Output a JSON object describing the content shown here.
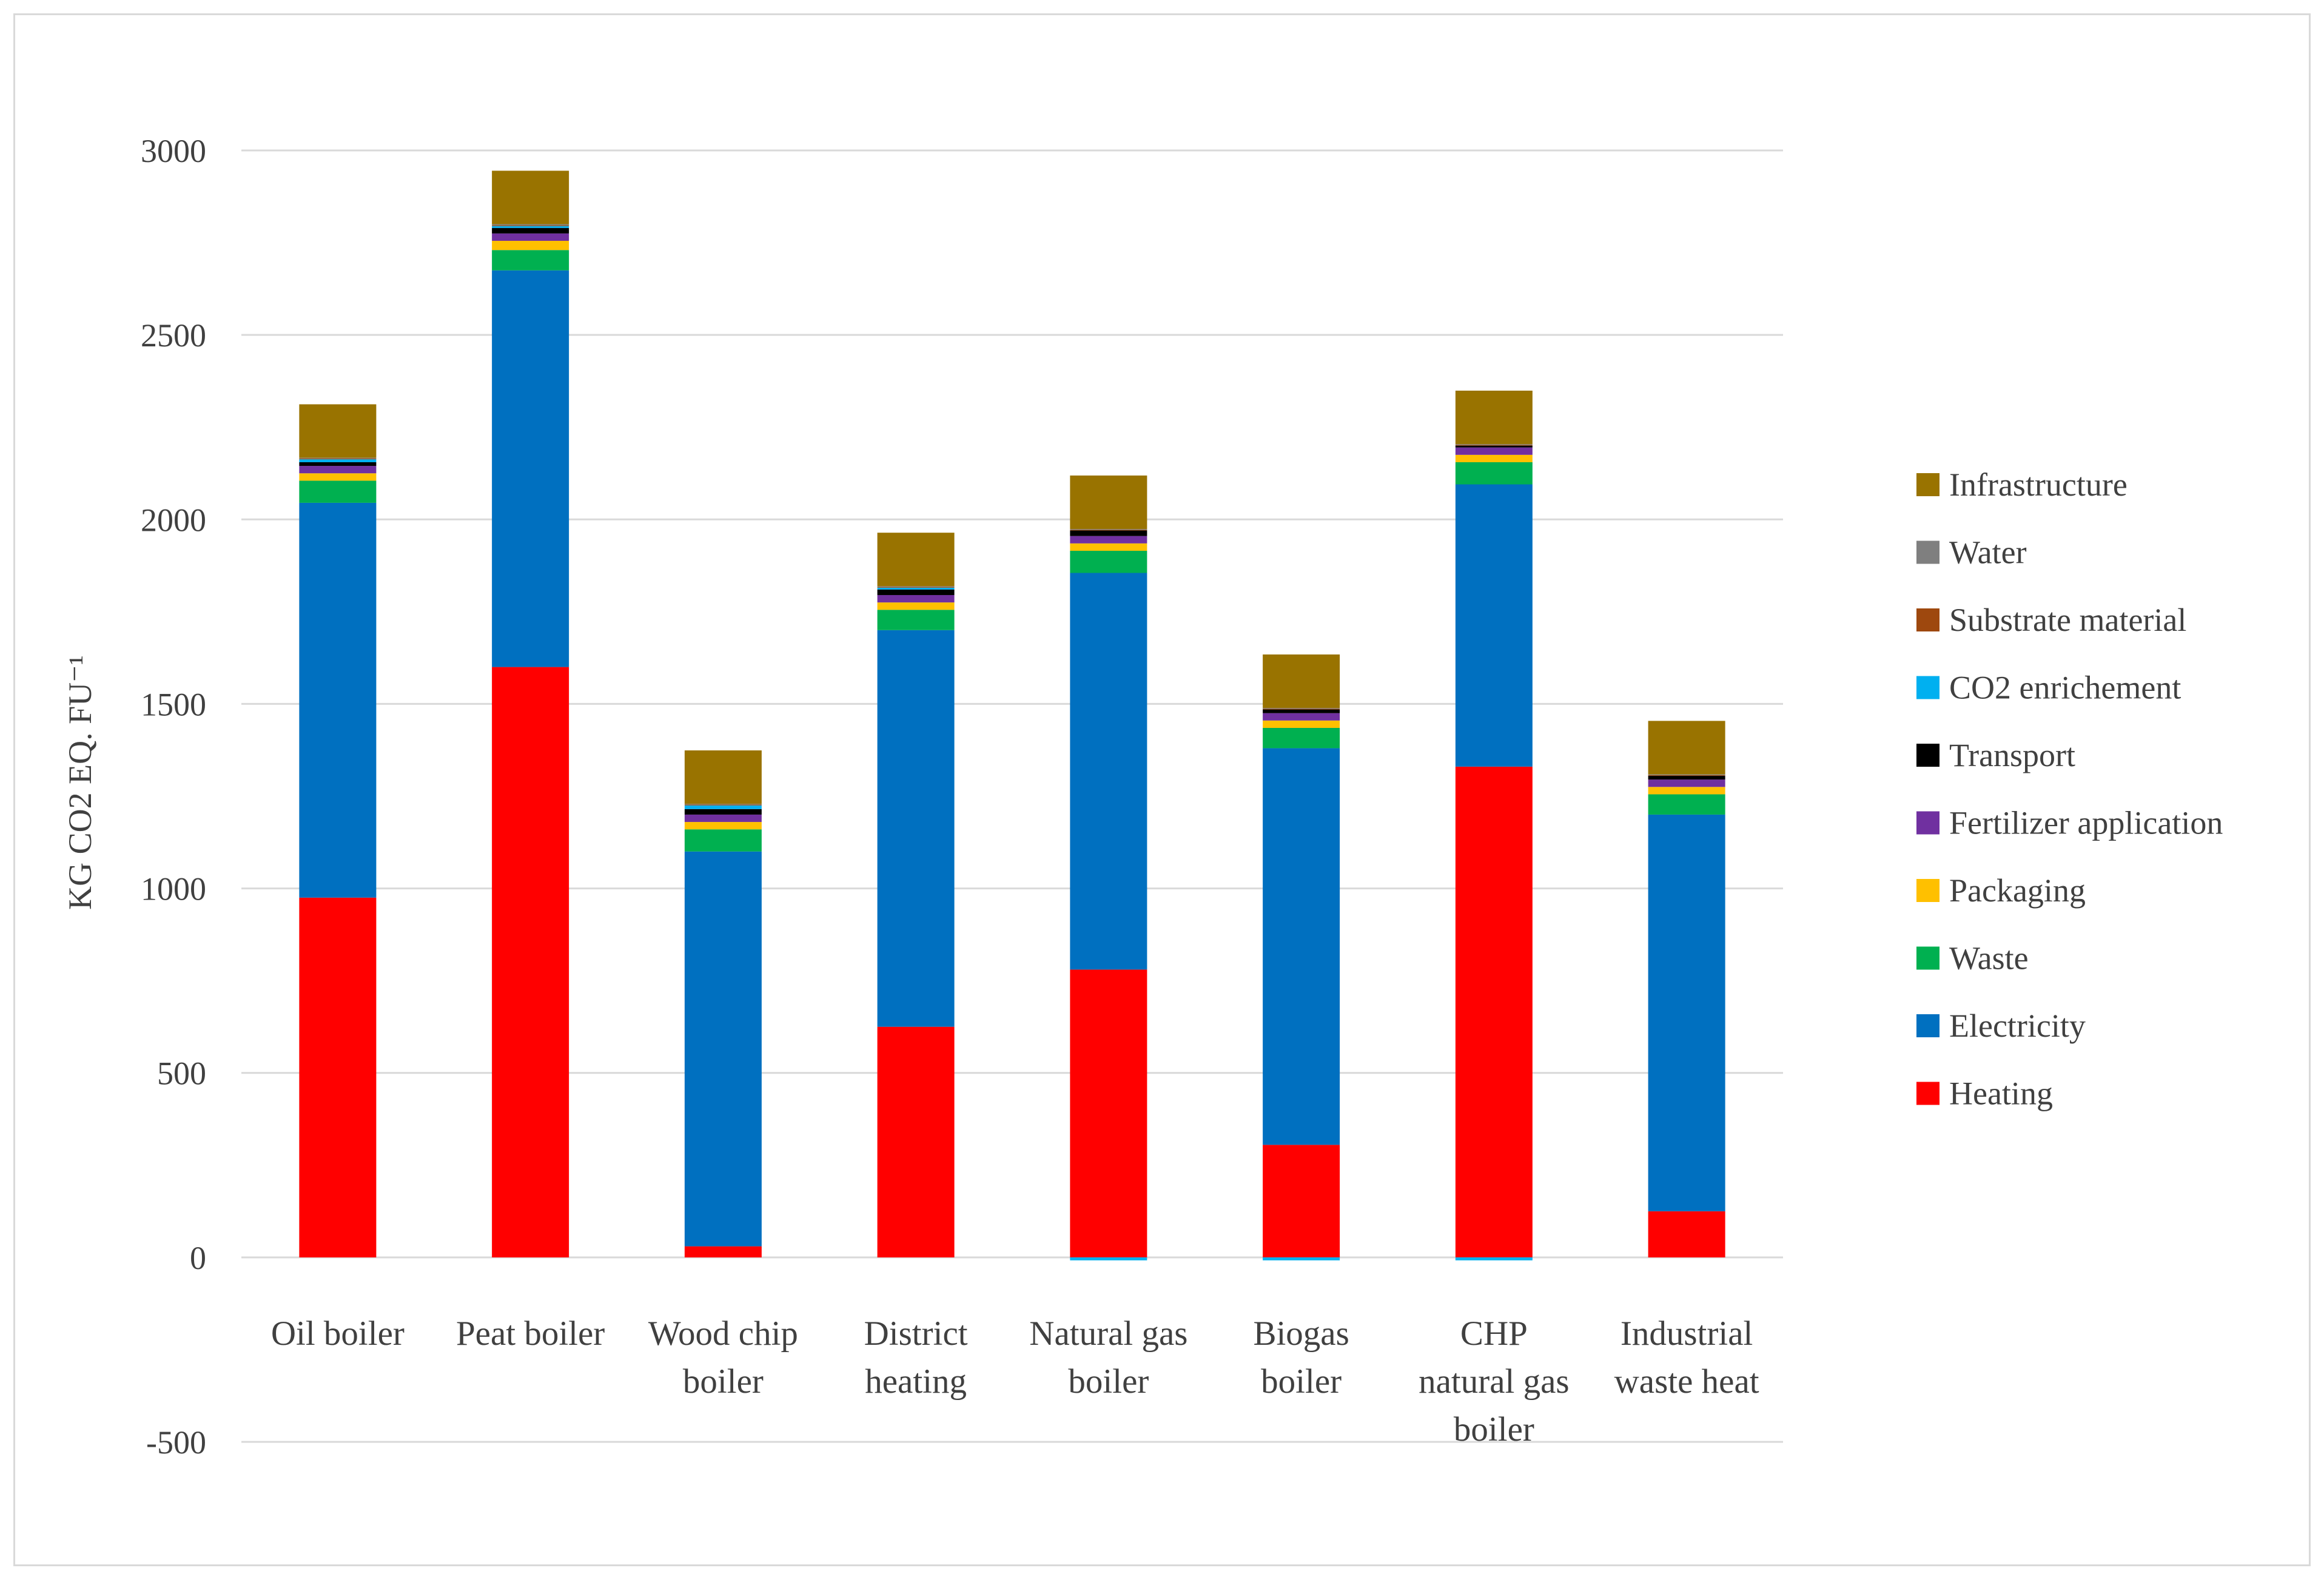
{
  "chart_data": {
    "type": "bar",
    "stacked": true,
    "title": "",
    "xlabel": "",
    "ylabel": "KG CO2 EQ. FU⁻¹",
    "ylim": [
      -500,
      3000
    ],
    "yticks": [
      -500,
      0,
      500,
      1000,
      1500,
      2000,
      2500,
      3000
    ],
    "ytick_labels": [
      "-500",
      "0",
      "500",
      "1000",
      "1500",
      "2000",
      "2500",
      "3000"
    ],
    "grid": true,
    "legend_position": "right",
    "categories": [
      [
        "Oil boiler"
      ],
      [
        "Peat boiler"
      ],
      [
        "Wood chip",
        "boiler"
      ],
      [
        "District",
        "heating"
      ],
      [
        "Natural gas",
        "boiler"
      ],
      [
        "Biogas",
        "boiler"
      ],
      [
        "CHP",
        "natural gas",
        "boiler"
      ],
      [
        "Industrial",
        "waste heat"
      ]
    ],
    "series": [
      {
        "name": "Heating",
        "color": "#ff0000",
        "values": [
          975,
          1600,
          30,
          625,
          780,
          305,
          1330,
          125
        ]
      },
      {
        "name": "Electricity",
        "color": "#0070c0",
        "values": [
          1070,
          1075,
          1070,
          1075,
          1075,
          1075,
          765,
          1075
        ]
      },
      {
        "name": "Waste",
        "color": "#00b050",
        "values": [
          60,
          55,
          60,
          55,
          60,
          55,
          60,
          55
        ]
      },
      {
        "name": "Packaging",
        "color": "#ffc000",
        "values": [
          20,
          25,
          20,
          20,
          20,
          20,
          20,
          20
        ]
      },
      {
        "name": "Fertilizer application",
        "color": "#7030a0",
        "values": [
          20,
          20,
          20,
          20,
          20,
          20,
          20,
          20
        ]
      },
      {
        "name": "Transport",
        "color": "#000000",
        "values": [
          10,
          15,
          15,
          15,
          15,
          10,
          5,
          10
        ]
      },
      {
        "name": "CO2 enrichement",
        "color": "#00b0f0",
        "values": [
          8,
          5,
          10,
          5,
          -8,
          -8,
          -8,
          0
        ]
      },
      {
        "name": "Substrate material",
        "color": "#9e480e",
        "values": [
          2,
          2,
          2,
          2,
          2,
          2,
          2,
          2
        ]
      },
      {
        "name": "Water",
        "color": "#7f7f7f",
        "values": [
          2,
          3,
          2,
          2,
          2,
          2,
          2,
          2
        ]
      },
      {
        "name": "Infrastructure",
        "color": "#997300",
        "values": [
          145,
          145,
          145,
          145,
          145,
          145,
          145,
          145
        ]
      }
    ]
  }
}
